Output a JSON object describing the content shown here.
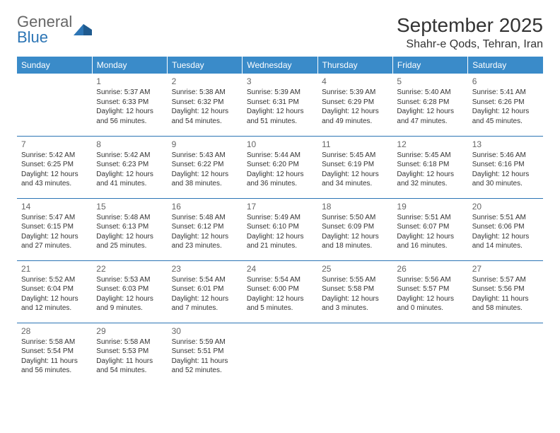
{
  "logo": {
    "word1": "General",
    "word2": "Blue"
  },
  "title": "September 2025",
  "location": "Shahr-e Qods, Tehran, Iran",
  "colors": {
    "header_bg": "#3a8bc9",
    "header_text": "#ffffff",
    "cell_border": "#2c75b5",
    "daynum": "#666666",
    "text": "#333333",
    "logo_gray": "#666666",
    "logo_blue": "#2c75b5"
  },
  "weekdays": [
    "Sunday",
    "Monday",
    "Tuesday",
    "Wednesday",
    "Thursday",
    "Friday",
    "Saturday"
  ],
  "start_offset": 1,
  "days": [
    {
      "n": 1,
      "sunrise": "5:37 AM",
      "sunset": "6:33 PM",
      "daylight": "12 hours and 56 minutes."
    },
    {
      "n": 2,
      "sunrise": "5:38 AM",
      "sunset": "6:32 PM",
      "daylight": "12 hours and 54 minutes."
    },
    {
      "n": 3,
      "sunrise": "5:39 AM",
      "sunset": "6:31 PM",
      "daylight": "12 hours and 51 minutes."
    },
    {
      "n": 4,
      "sunrise": "5:39 AM",
      "sunset": "6:29 PM",
      "daylight": "12 hours and 49 minutes."
    },
    {
      "n": 5,
      "sunrise": "5:40 AM",
      "sunset": "6:28 PM",
      "daylight": "12 hours and 47 minutes."
    },
    {
      "n": 6,
      "sunrise": "5:41 AM",
      "sunset": "6:26 PM",
      "daylight": "12 hours and 45 minutes."
    },
    {
      "n": 7,
      "sunrise": "5:42 AM",
      "sunset": "6:25 PM",
      "daylight": "12 hours and 43 minutes."
    },
    {
      "n": 8,
      "sunrise": "5:42 AM",
      "sunset": "6:23 PM",
      "daylight": "12 hours and 41 minutes."
    },
    {
      "n": 9,
      "sunrise": "5:43 AM",
      "sunset": "6:22 PM",
      "daylight": "12 hours and 38 minutes."
    },
    {
      "n": 10,
      "sunrise": "5:44 AM",
      "sunset": "6:20 PM",
      "daylight": "12 hours and 36 minutes."
    },
    {
      "n": 11,
      "sunrise": "5:45 AM",
      "sunset": "6:19 PM",
      "daylight": "12 hours and 34 minutes."
    },
    {
      "n": 12,
      "sunrise": "5:45 AM",
      "sunset": "6:18 PM",
      "daylight": "12 hours and 32 minutes."
    },
    {
      "n": 13,
      "sunrise": "5:46 AM",
      "sunset": "6:16 PM",
      "daylight": "12 hours and 30 minutes."
    },
    {
      "n": 14,
      "sunrise": "5:47 AM",
      "sunset": "6:15 PM",
      "daylight": "12 hours and 27 minutes."
    },
    {
      "n": 15,
      "sunrise": "5:48 AM",
      "sunset": "6:13 PM",
      "daylight": "12 hours and 25 minutes."
    },
    {
      "n": 16,
      "sunrise": "5:48 AM",
      "sunset": "6:12 PM",
      "daylight": "12 hours and 23 minutes."
    },
    {
      "n": 17,
      "sunrise": "5:49 AM",
      "sunset": "6:10 PM",
      "daylight": "12 hours and 21 minutes."
    },
    {
      "n": 18,
      "sunrise": "5:50 AM",
      "sunset": "6:09 PM",
      "daylight": "12 hours and 18 minutes."
    },
    {
      "n": 19,
      "sunrise": "5:51 AM",
      "sunset": "6:07 PM",
      "daylight": "12 hours and 16 minutes."
    },
    {
      "n": 20,
      "sunrise": "5:51 AM",
      "sunset": "6:06 PM",
      "daylight": "12 hours and 14 minutes."
    },
    {
      "n": 21,
      "sunrise": "5:52 AM",
      "sunset": "6:04 PM",
      "daylight": "12 hours and 12 minutes."
    },
    {
      "n": 22,
      "sunrise": "5:53 AM",
      "sunset": "6:03 PM",
      "daylight": "12 hours and 9 minutes."
    },
    {
      "n": 23,
      "sunrise": "5:54 AM",
      "sunset": "6:01 PM",
      "daylight": "12 hours and 7 minutes."
    },
    {
      "n": 24,
      "sunrise": "5:54 AM",
      "sunset": "6:00 PM",
      "daylight": "12 hours and 5 minutes."
    },
    {
      "n": 25,
      "sunrise": "5:55 AM",
      "sunset": "5:58 PM",
      "daylight": "12 hours and 3 minutes."
    },
    {
      "n": 26,
      "sunrise": "5:56 AM",
      "sunset": "5:57 PM",
      "daylight": "12 hours and 0 minutes."
    },
    {
      "n": 27,
      "sunrise": "5:57 AM",
      "sunset": "5:56 PM",
      "daylight": "11 hours and 58 minutes."
    },
    {
      "n": 28,
      "sunrise": "5:58 AM",
      "sunset": "5:54 PM",
      "daylight": "11 hours and 56 minutes."
    },
    {
      "n": 29,
      "sunrise": "5:58 AM",
      "sunset": "5:53 PM",
      "daylight": "11 hours and 54 minutes."
    },
    {
      "n": 30,
      "sunrise": "5:59 AM",
      "sunset": "5:51 PM",
      "daylight": "11 hours and 52 minutes."
    }
  ]
}
